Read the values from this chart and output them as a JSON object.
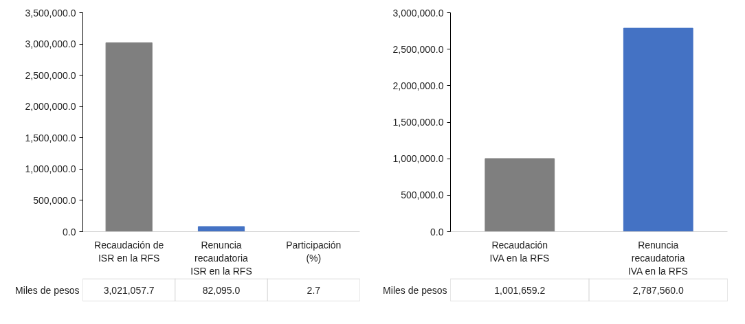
{
  "chart_data": [
    {
      "type": "bar",
      "categories": [
        "Recaudación de ISR en la RFS",
        "Renuncia recaudatoria ISR en la RFS",
        "Participación (%)"
      ],
      "series": [
        {
          "name": "Miles de pesos",
          "colors": [
            "#7f7f7f",
            "#4472c4",
            "#4472c4"
          ],
          "values": [
            3021057.7,
            82095.0,
            2.7
          ],
          "value_labels": [
            "3,021,057.7",
            "82,095.0",
            "2.7"
          ]
        }
      ],
      "ylim": [
        0,
        3500000
      ],
      "yticks": [
        {
          "value": 0,
          "label": "0.0"
        },
        {
          "value": 500000,
          "label": "500,000.0"
        },
        {
          "value": 1000000,
          "label": "1,000,000.0"
        },
        {
          "value": 1500000,
          "label": "1,500,000.0"
        },
        {
          "value": 2000000,
          "label": "2,000,000.0"
        },
        {
          "value": 2500000,
          "label": "2,500,000.0"
        },
        {
          "value": 3000000,
          "label": "3,000,000.0"
        },
        {
          "value": 3500000,
          "label": "3,500,000.0"
        }
      ],
      "grid": false,
      "legend": false
    },
    {
      "type": "bar",
      "categories": [
        "Recaudación IVA en la RFS",
        "Renuncia recaudatoria IVA en la RFS"
      ],
      "series": [
        {
          "name": "Miles de pesos",
          "colors": [
            "#7f7f7f",
            "#4472c4"
          ],
          "values": [
            1001659.2,
            2787560.0
          ],
          "value_labels": [
            "1,001,659.2",
            "2,787,560.0"
          ]
        }
      ],
      "ylim": [
        0,
        3000000
      ],
      "yticks": [
        {
          "value": 0,
          "label": "0.0"
        },
        {
          "value": 500000,
          "label": "500,000.0"
        },
        {
          "value": 1000000,
          "label": "1,000,000.0"
        },
        {
          "value": 1500000,
          "label": "1,500,000.0"
        },
        {
          "value": 2000000,
          "label": "2,000,000.0"
        },
        {
          "value": 2500000,
          "label": "2,500,000.0"
        },
        {
          "value": 3000000,
          "label": "3,000,000.0"
        }
      ],
      "grid": false,
      "legend": false
    }
  ]
}
